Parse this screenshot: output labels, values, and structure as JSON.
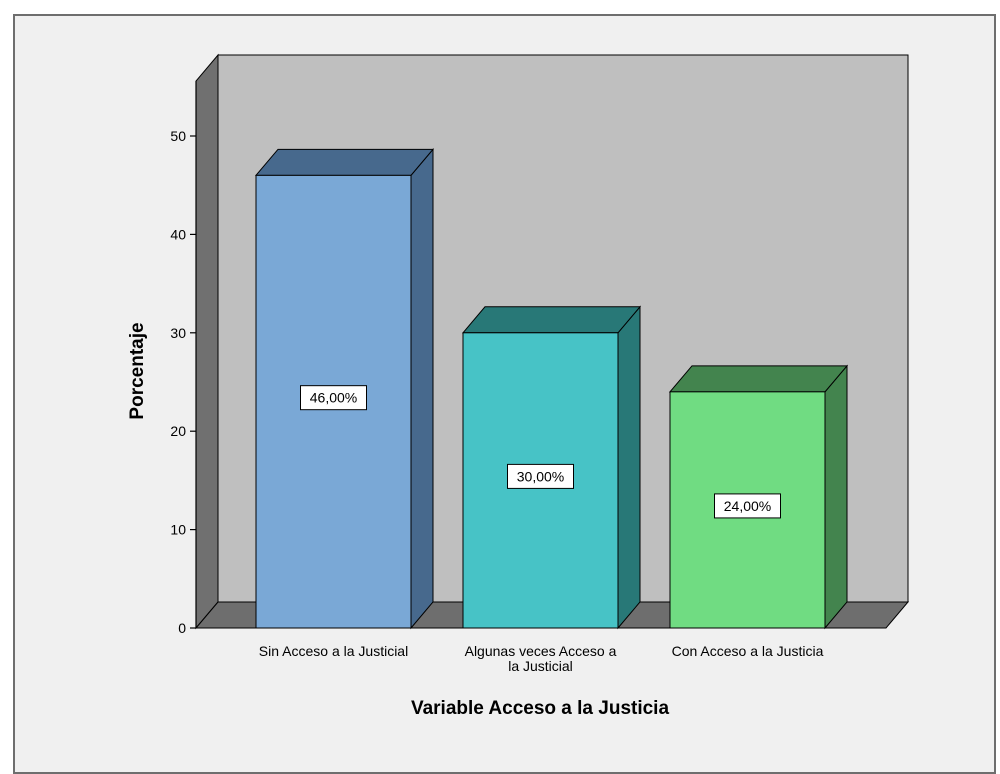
{
  "chart_data": {
    "type": "bar",
    "categories": [
      [
        "Sin Acceso a la Justicial"
      ],
      [
        "Algunas veces Acceso a",
        "la Justicial"
      ],
      [
        "Con Acceso a la Justicia"
      ]
    ],
    "values": [
      46,
      30,
      24
    ],
    "data_labels": [
      "46,00%",
      "30,00%",
      "24,00%"
    ],
    "xlabel": "Variable Acceso a la Justicia",
    "ylabel": "Porcentaje",
    "ylim": [
      0,
      50
    ],
    "yticks": [
      0,
      10,
      20,
      30,
      40,
      50
    ],
    "grid": false,
    "style": "3d",
    "colors": {
      "frame_background": "#f0f0f0",
      "plot_wall": "#bfbfbf",
      "side_wall": "#707070",
      "floor": "#6e6e6e",
      "bars": [
        {
          "front": "#7aa8d6",
          "top": "#47698d",
          "side": "#47698d"
        },
        {
          "front": "#47c3c6",
          "top": "#287877",
          "side": "#287877"
        },
        {
          "front": "#70dc82",
          "top": "#43844e",
          "side": "#43844e"
        }
      ]
    }
  }
}
